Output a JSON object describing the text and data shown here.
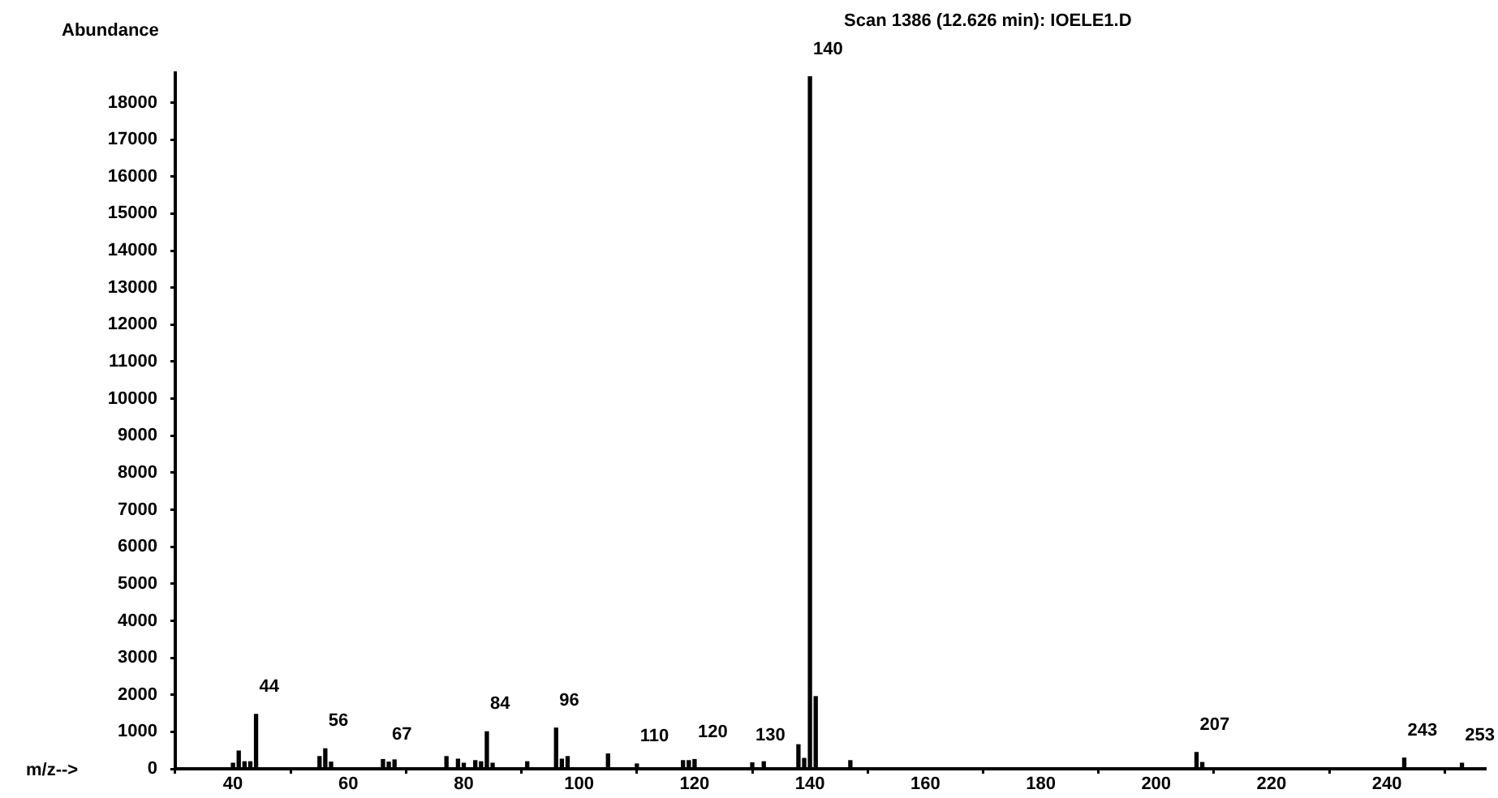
{
  "chart_data": {
    "type": "bar",
    "title": "Scan 1386 (12.626 min): IOELE1.D",
    "xlabel": "m/z-->",
    "ylabel": "Abundance",
    "color": "#000000",
    "grid": false,
    "x": [
      40,
      41,
      42,
      43,
      44,
      55,
      56,
      57,
      66,
      67,
      68,
      77,
      79,
      80,
      82,
      83,
      84,
      85,
      91,
      96,
      97,
      98,
      105,
      110,
      118,
      119,
      120,
      130,
      132,
      138,
      139,
      140,
      141,
      147,
      207,
      208,
      243,
      253
    ],
    "values": [
      150,
      480,
      190,
      190,
      1470,
      330,
      540,
      180,
      250,
      180,
      240,
      330,
      260,
      150,
      220,
      190,
      1000,
      150,
      190,
      1100,
      260,
      330,
      400,
      130,
      220,
      220,
      250,
      160,
      190,
      650,
      280,
      18700,
      1950,
      220,
      440,
      170,
      290,
      150
    ],
    "xlim": [
      30,
      257
    ],
    "xticks": [
      40,
      60,
      80,
      100,
      120,
      140,
      160,
      180,
      200,
      220,
      240
    ],
    "ylim": [
      0,
      18800
    ],
    "yticks": [
      0,
      1000,
      2000,
      3000,
      4000,
      5000,
      6000,
      7000,
      8000,
      9000,
      10000,
      11000,
      12000,
      13000,
      14000,
      15000,
      16000,
      17000,
      18000
    ],
    "annotations": [
      {
        "text": "44",
        "x": 44,
        "y": 1470
      },
      {
        "text": "56",
        "x": 56,
        "y": 540
      },
      {
        "text": "67",
        "x": 67,
        "y": 180
      },
      {
        "text": "84",
        "x": 84,
        "y": 1000
      },
      {
        "text": "96",
        "x": 96,
        "y": 1100
      },
      {
        "text": "110",
        "x": 110,
        "y": 130
      },
      {
        "text": "120",
        "x": 120,
        "y": 250
      },
      {
        "text": "130",
        "x": 130,
        "y": 160
      },
      {
        "text": "140",
        "x": 140,
        "y": 18700
      },
      {
        "text": "207",
        "x": 207,
        "y": 440
      },
      {
        "text": "243",
        "x": 243,
        "y": 290
      },
      {
        "text": "253",
        "x": 253,
        "y": 150
      }
    ]
  }
}
